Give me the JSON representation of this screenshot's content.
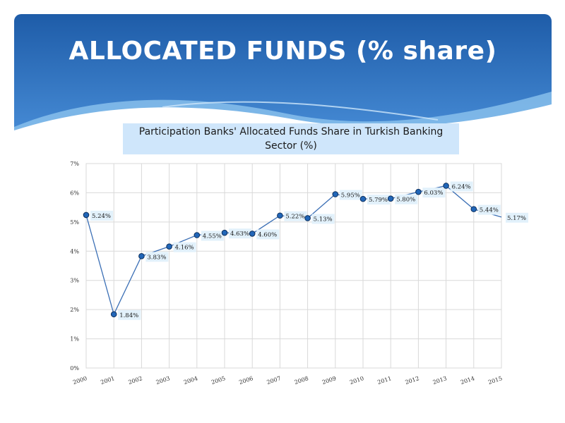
{
  "slide": {
    "title": "ALLOCATED FUNDS (% share)"
  },
  "colors": {
    "header_top": "#1e5ca8",
    "header_bottom": "#4d93dd",
    "line": "#3b6fb5",
    "marker": "#2166b8",
    "label_bg": "#e2f1fb",
    "title_bg": "#cfe6fb"
  },
  "chart_data": {
    "type": "line",
    "title": "Participation Banks' Allocated Funds Share in Turkish Banking Sector (%)",
    "xlabel": "",
    "ylabel": "",
    "x": [
      "2000",
      "2001",
      "2002",
      "2003",
      "2004",
      "2005",
      "2006",
      "2007",
      "2008",
      "2009",
      "2010",
      "2011",
      "2012",
      "2013",
      "2014",
      "2015"
    ],
    "series": [
      {
        "values": [
          5.24,
          1.84,
          3.83,
          4.16,
          4.55,
          4.63,
          4.6,
          5.22,
          5.13,
          5.95,
          5.79,
          5.8,
          6.03,
          6.24,
          5.44,
          5.17
        ],
        "labels": [
          "5.24%",
          "1.84%",
          "3.83%",
          "4.16%",
          "4.55%",
          "4.63%",
          "4.60%",
          "5.22%",
          "5.13%",
          "5.95%",
          "5.79%",
          "5.80%",
          "6.03%",
          "6.24%",
          "5.44%",
          "5.17%"
        ],
        "markers": [
          true,
          true,
          true,
          true,
          true,
          true,
          true,
          true,
          true,
          true,
          true,
          true,
          true,
          true,
          true,
          false
        ]
      }
    ],
    "yticks": [
      "0%",
      "1%",
      "2%",
      "3%",
      "4%",
      "5%",
      "6%",
      "7%"
    ],
    "ylim": [
      0,
      7
    ],
    "grid": true
  }
}
